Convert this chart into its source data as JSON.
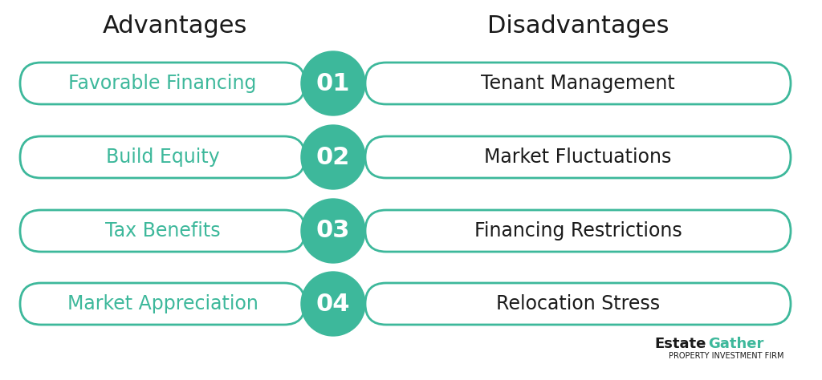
{
  "title_left": "Advantages",
  "title_right": "Disadvantages",
  "advantages": [
    "Favorable Financing",
    "Build Equity",
    "Tax Benefits",
    "Market Appreciation"
  ],
  "disadvantages": [
    "Tenant Management",
    "Market Fluctuations",
    "Financing Restrictions",
    "Relocation Stress"
  ],
  "numbers": [
    "01",
    "02",
    "03",
    "04"
  ],
  "teal_color": "#3db89b",
  "text_dark": "#1a1a1a",
  "bg_color": "#ffffff",
  "title_fontsize": 22,
  "adv_fontsize": 17,
  "disadv_fontsize": 17,
  "num_fontsize": 22,
  "brand_name1": "Estate",
  "brand_name2": "Gather",
  "brand_sub": "PROPERTY INVESTMENT FIRM",
  "brand_fontsize": 13,
  "brand_sub_fontsize": 7
}
